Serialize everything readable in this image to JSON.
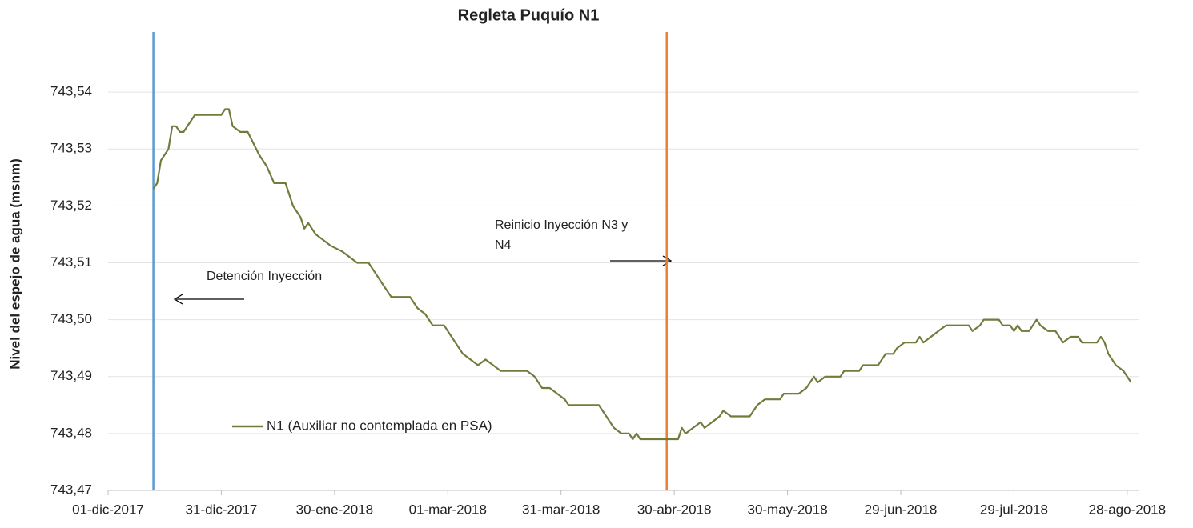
{
  "chart_data": {
    "type": "line",
    "title": "Regleta Puquío N1",
    "y_label": "Nivel del espejo de agua (msnm)",
    "xlim": [
      "2017-12-01",
      "2018-08-31"
    ],
    "xticks": [
      {
        "value": "2017-12-01",
        "label": "01-dic-2017"
      },
      {
        "value": "2017-12-31",
        "label": "31-dic-2017"
      },
      {
        "value": "2018-01-30",
        "label": "30-ene-2018"
      },
      {
        "value": "2018-03-01",
        "label": "01-mar-2018"
      },
      {
        "value": "2018-03-31",
        "label": "31-mar-2018"
      },
      {
        "value": "2018-04-30",
        "label": "30-abr-2018"
      },
      {
        "value": "2018-05-30",
        "label": "30-may-2018"
      },
      {
        "value": "2018-06-29",
        "label": "29-jun-2018"
      },
      {
        "value": "2018-07-29",
        "label": "29-jul-2018"
      },
      {
        "value": "2018-08-28",
        "label": "28-ago-2018"
      }
    ],
    "ylim": [
      743.47,
      743.55
    ],
    "yticks": [
      {
        "value": 743.47,
        "label": "743,47"
      },
      {
        "value": 743.48,
        "label": "743,48"
      },
      {
        "value": 743.49,
        "label": "743,49"
      },
      {
        "value": 743.5,
        "label": "743,50"
      },
      {
        "value": 743.51,
        "label": "743,51"
      },
      {
        "value": 743.52,
        "label": "743,52"
      },
      {
        "value": 743.53,
        "label": "743,53"
      },
      {
        "value": 743.54,
        "label": "743,54"
      }
    ],
    "grid": true,
    "x": [
      "2017-12-13",
      "2017-12-14",
      "2017-12-15",
      "2017-12-17",
      "2017-12-18",
      "2017-12-19",
      "2017-12-20",
      "2017-12-21",
      "2017-12-24",
      "2017-12-31",
      "2018-01-01",
      "2018-01-02",
      "2018-01-03",
      "2018-01-05",
      "2018-01-07",
      "2018-01-10",
      "2018-01-12",
      "2018-01-14",
      "2018-01-17",
      "2018-01-18",
      "2018-01-19",
      "2018-01-21",
      "2018-01-22",
      "2018-01-23",
      "2018-01-25",
      "2018-01-27",
      "2018-01-29",
      "2018-02-01",
      "2018-02-03",
      "2018-02-05",
      "2018-02-08",
      "2018-02-10",
      "2018-02-12",
      "2018-02-14",
      "2018-02-19",
      "2018-02-21",
      "2018-02-23",
      "2018-02-25",
      "2018-02-28",
      "2018-03-02",
      "2018-03-04",
      "2018-03-05",
      "2018-03-07",
      "2018-03-09",
      "2018-03-11",
      "2018-03-13",
      "2018-03-15",
      "2018-03-22",
      "2018-03-24",
      "2018-03-26",
      "2018-03-28",
      "2018-03-30",
      "2018-04-01",
      "2018-04-02",
      "2018-04-10",
      "2018-04-12",
      "2018-04-14",
      "2018-04-16",
      "2018-04-18",
      "2018-04-19",
      "2018-04-20",
      "2018-04-21",
      "2018-05-01",
      "2018-05-02",
      "2018-05-03",
      "2018-05-05",
      "2018-05-07",
      "2018-05-08",
      "2018-05-10",
      "2018-05-12",
      "2018-05-13",
      "2018-05-15",
      "2018-05-20",
      "2018-05-22",
      "2018-05-24",
      "2018-05-28",
      "2018-05-29",
      "2018-06-02",
      "2018-06-04",
      "2018-06-05",
      "2018-06-06",
      "2018-06-07",
      "2018-06-09",
      "2018-06-13",
      "2018-06-14",
      "2018-06-18",
      "2018-06-19",
      "2018-06-23",
      "2018-06-25",
      "2018-06-27",
      "2018-06-28",
      "2018-06-30",
      "2018-07-03",
      "2018-07-04",
      "2018-07-05",
      "2018-07-07",
      "2018-07-09",
      "2018-07-11",
      "2018-07-17",
      "2018-07-18",
      "2018-07-20",
      "2018-07-21",
      "2018-07-25",
      "2018-07-26",
      "2018-07-28",
      "2018-07-29",
      "2018-07-30",
      "2018-07-31",
      "2018-08-02",
      "2018-08-03",
      "2018-08-04",
      "2018-08-05",
      "2018-08-07",
      "2018-08-09",
      "2018-08-10",
      "2018-08-11",
      "2018-08-13",
      "2018-08-15",
      "2018-08-16",
      "2018-08-20",
      "2018-08-21",
      "2018-08-22",
      "2018-08-23",
      "2018-08-25",
      "2018-08-27",
      "2018-08-29"
    ],
    "series": [
      {
        "name": "N1 (Auxiliar no contemplada en PSA)",
        "color": "#6f7c3c",
        "values": [
          743.523,
          743.524,
          743.528,
          743.53,
          743.534,
          743.534,
          743.533,
          743.533,
          743.536,
          743.536,
          743.537,
          743.537,
          743.534,
          743.533,
          743.533,
          743.529,
          743.527,
          743.524,
          743.524,
          743.522,
          743.52,
          743.518,
          743.516,
          743.517,
          743.515,
          743.514,
          743.513,
          743.512,
          743.511,
          743.51,
          743.51,
          743.508,
          743.506,
          743.504,
          743.504,
          743.502,
          743.501,
          743.499,
          743.499,
          743.497,
          743.495,
          743.494,
          743.493,
          743.492,
          743.493,
          743.492,
          743.491,
          743.491,
          743.49,
          743.488,
          743.488,
          743.487,
          743.486,
          743.485,
          743.485,
          743.483,
          743.481,
          743.48,
          743.48,
          743.479,
          743.48,
          743.479,
          743.479,
          743.481,
          743.48,
          743.481,
          743.482,
          743.481,
          743.482,
          743.483,
          743.484,
          743.483,
          743.483,
          743.485,
          743.486,
          743.486,
          743.487,
          743.487,
          743.488,
          743.489,
          743.49,
          743.489,
          743.49,
          743.49,
          743.491,
          743.491,
          743.492,
          743.492,
          743.494,
          743.494,
          743.495,
          743.496,
          743.496,
          743.497,
          743.496,
          743.497,
          743.498,
          743.499,
          743.499,
          743.498,
          743.499,
          743.5,
          743.5,
          743.499,
          743.499,
          743.498,
          743.499,
          743.498,
          743.498,
          743.499,
          743.5,
          743.499,
          743.498,
          743.498,
          743.497,
          743.496,
          743.497,
          743.497,
          743.496,
          743.496,
          743.497,
          743.496,
          743.494,
          743.492,
          743.491,
          743.489
        ]
      }
    ],
    "vlines": [
      {
        "x": "2017-12-13",
        "color": "#5b9bd5"
      },
      {
        "x": "2018-04-28",
        "color": "#ed7d31"
      }
    ],
    "annotations": [
      {
        "lines": [
          "Detención Inyección"
        ]
      },
      {
        "lines": [
          "Reinicio Inyección N3 y",
          "N4"
        ]
      }
    ]
  }
}
